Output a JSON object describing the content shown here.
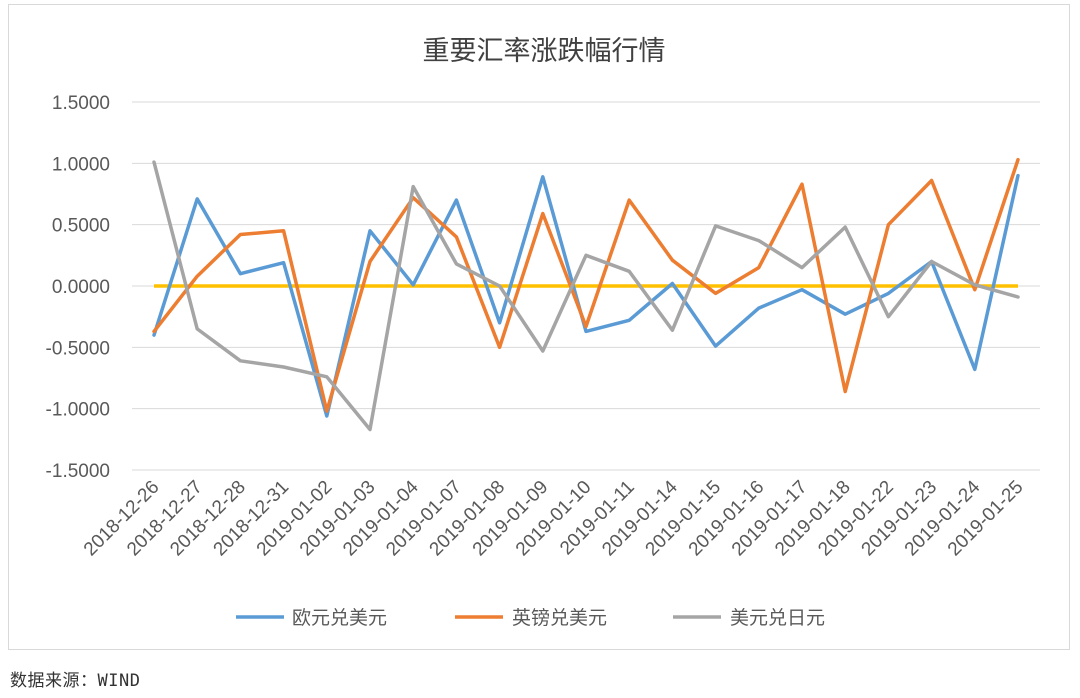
{
  "chart_data": {
    "type": "line",
    "title": "重要汇率涨跌幅行情",
    "categories": [
      "2018-12-26",
      "2018-12-27",
      "2018-12-28",
      "2018-12-31",
      "2019-01-02",
      "2019-01-03",
      "2019-01-04",
      "2019-01-07",
      "2019-01-08",
      "2019-01-09",
      "2019-01-10",
      "2019-01-11",
      "2019-01-14",
      "2019-01-15",
      "2019-01-16",
      "2019-01-17",
      "2019-01-18",
      "2019-01-22",
      "2019-01-23",
      "2019-01-24",
      "2019-01-25"
    ],
    "ylim": [
      -1.5,
      1.5
    ],
    "yticks": [
      "1.5000",
      "1.0000",
      "0.5000",
      "0.0000",
      "-0.5000",
      "-1.0000",
      "-1.5000"
    ],
    "ytick_values": [
      1.5,
      1.0,
      0.5,
      0.0,
      -0.5,
      -1.0,
      -1.5
    ],
    "grid": true,
    "legend_position": "bottom",
    "reference_line": {
      "value": 0,
      "color": "#FFC000"
    },
    "series": [
      {
        "name": "欧元兑美元",
        "color": "#5B9BD5",
        "values": [
          -0.4,
          0.71,
          0.1,
          0.19,
          -1.06,
          0.45,
          0.01,
          0.7,
          -0.3,
          0.89,
          -0.37,
          -0.28,
          0.02,
          -0.49,
          -0.18,
          -0.03,
          -0.23,
          -0.06,
          0.2,
          -0.68,
          0.9
        ]
      },
      {
        "name": "英镑兑美元",
        "color": "#ED7D31",
        "values": [
          -0.37,
          0.08,
          0.42,
          0.45,
          -1.02,
          0.2,
          0.72,
          0.4,
          -0.5,
          0.59,
          -0.33,
          0.7,
          0.21,
          -0.06,
          0.15,
          0.83,
          -0.86,
          0.5,
          0.86,
          -0.03,
          1.03
        ]
      },
      {
        "name": "美元兑日元",
        "color": "#A5A5A5",
        "values": [
          1.01,
          -0.35,
          -0.61,
          -0.66,
          -0.74,
          -1.17,
          0.81,
          0.18,
          0.0,
          -0.53,
          0.25,
          0.12,
          -0.36,
          0.49,
          0.37,
          0.15,
          0.48,
          -0.25,
          0.2,
          0.01,
          -0.09
        ]
      }
    ]
  },
  "source_note": "数据来源：WIND"
}
